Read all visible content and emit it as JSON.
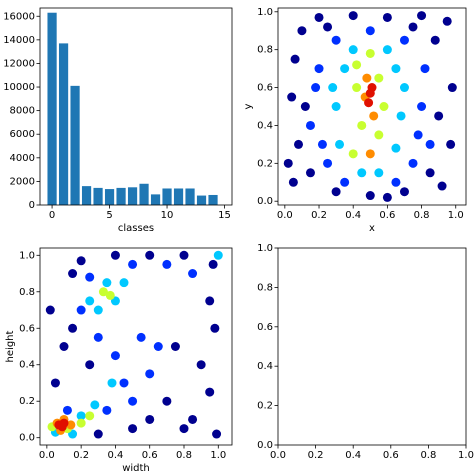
{
  "chart_data": [
    {
      "type": "bar",
      "xlabel": "classes",
      "x": [
        0,
        1,
        2,
        3,
        4,
        5,
        6,
        7,
        8,
        9,
        10,
        11,
        12,
        13,
        14
      ],
      "values": [
        16300,
        13700,
        10100,
        1600,
        1450,
        1350,
        1450,
        1500,
        1800,
        900,
        1400,
        1400,
        1400,
        800,
        850
      ],
      "color": "#1f77b4",
      "xlim": [
        -1.05,
        15.65
      ],
      "xticks": [
        0,
        5,
        10,
        15
      ],
      "ylim": [
        0,
        16700
      ],
      "yticks": [
        0,
        2000,
        4000,
        6000,
        8000,
        10000,
        12000,
        14000,
        16000
      ]
    },
    {
      "type": "scatter",
      "xlabel": "x",
      "ylabel": "y",
      "xlim": [
        -0.04,
        1.06
      ],
      "ylim": [
        -0.02,
        1.02
      ],
      "xticks": [
        {
          "value": 0,
          "label": "0.0"
        },
        0.2,
        0.4,
        0.6,
        0.8,
        {
          "value": 1,
          "label": "1.0"
        }
      ],
      "yticks": [
        {
          "value": 0,
          "label": "0.0"
        },
        0.2,
        0.4,
        0.6,
        0.8,
        {
          "value": 1,
          "label": "1.0"
        }
      ],
      "series": [
        {
          "color": "#00008f",
          "x": [
            0.05,
            0.1,
            0.2,
            0.4,
            0.6,
            0.8,
            0.95,
            0.98,
            0.97,
            0.92,
            0.7,
            0.5,
            0.3,
            0.08,
            0.04,
            0.06,
            0.15,
            0.85,
            0.88,
            0.12,
            0.9,
            0.25,
            0.75,
            0.02,
            0.6
          ],
          "values": [
            0.1,
            0.9,
            0.97,
            0.98,
            0.97,
            0.98,
            0.95,
            0.6,
            0.3,
            0.08,
            0.05,
            0.03,
            0.05,
            0.3,
            0.55,
            0.75,
            0.15,
            0.15,
            0.85,
            0.5,
            0.45,
            0.92,
            0.92,
            0.2,
            0.02
          ]
        },
        {
          "color": "#0030ff",
          "x": [
            0.15,
            0.2,
            0.25,
            0.3,
            0.7,
            0.75,
            0.8,
            0.82,
            0.18,
            0.78,
            0.35,
            0.65,
            0.5,
            0.22,
            0.85
          ],
          "values": [
            0.4,
            0.7,
            0.2,
            0.85,
            0.85,
            0.2,
            0.5,
            0.7,
            0.6,
            0.35,
            0.1,
            0.1,
            0.9,
            0.3,
            0.3
          ]
        },
        {
          "color": "#00c8ff",
          "x": [
            0.3,
            0.35,
            0.65,
            0.68,
            0.32,
            0.65,
            0.4,
            0.6,
            0.45,
            0.55,
            0.28,
            0.7
          ],
          "values": [
            0.5,
            0.7,
            0.7,
            0.45,
            0.3,
            0.28,
            0.8,
            0.8,
            0.15,
            0.15,
            0.6,
            0.6
          ]
        },
        {
          "color": "#c8ff30",
          "x": [
            0.42,
            0.55,
            0.45,
            0.55,
            0.4,
            0.58,
            0.42,
            0.5
          ],
          "values": [
            0.6,
            0.65,
            0.4,
            0.35,
            0.25,
            0.5,
            0.72,
            0.78
          ]
        },
        {
          "color": "#ff8c00",
          "x": [
            0.47,
            0.52,
            0.5,
            0.48
          ],
          "values": [
            0.55,
            0.45,
            0.25,
            0.65
          ]
        },
        {
          "color": "#e01000",
          "x": [
            0.5,
            0.49,
            0.51
          ],
          "values": [
            0.57,
            0.52,
            0.6
          ]
        }
      ]
    },
    {
      "type": "scatter",
      "xlabel": "width",
      "ylabel": "height",
      "xlim": [
        -0.04,
        1.08
      ],
      "ylim": [
        -0.04,
        1.04
      ],
      "xticks": [
        {
          "value": 0,
          "label": "0.0"
        },
        0.2,
        0.4,
        0.6,
        0.8,
        {
          "value": 1,
          "label": "1.0"
        }
      ],
      "yticks": [
        {
          "value": 0,
          "label": "0.0"
        },
        0.2,
        0.4,
        0.6,
        0.8,
        {
          "value": 1,
          "label": "1.0"
        }
      ],
      "series": [
        {
          "color": "#00008f",
          "x": [
            0.02,
            0.05,
            0.1,
            0.15,
            0.2,
            0.4,
            0.6,
            0.8,
            0.97,
            0.98,
            0.95,
            0.8,
            0.6,
            0.5,
            0.3,
            0.9,
            0.7,
            0.85,
            0.99,
            0.15,
            0.75,
            0.95,
            0.25
          ],
          "values": [
            0.7,
            0.3,
            0.5,
            0.9,
            0.97,
            1.0,
            1.0,
            1.0,
            0.95,
            0.6,
            0.25,
            0.05,
            0.1,
            0.05,
            0.02,
            0.4,
            0.2,
            0.1,
            0.02,
            0.6,
            0.5,
            0.75,
            0.4
          ]
        },
        {
          "color": "#0030ff",
          "x": [
            0.2,
            0.25,
            0.5,
            0.7,
            0.55,
            0.65,
            0.45,
            0.6,
            0.35,
            0.5,
            0.85,
            0.3,
            0.4,
            0.12
          ],
          "values": [
            0.7,
            0.88,
            0.95,
            0.95,
            0.55,
            0.5,
            0.3,
            0.35,
            0.15,
            0.2,
            0.9,
            0.55,
            0.45,
            0.15
          ]
        },
        {
          "color": "#00c8ff",
          "x": [
            0.3,
            0.35,
            0.4,
            0.25,
            0.45,
            0.2,
            0.28,
            0.38,
            0.05,
            0.15,
            1.0
          ],
          "values": [
            0.7,
            0.85,
            0.75,
            0.75,
            0.85,
            0.12,
            0.18,
            0.3,
            0.03,
            0.02,
            1.0
          ]
        },
        {
          "color": "#c8ff30",
          "x": [
            0.33,
            0.37,
            0.2,
            0.25,
            0.12,
            0.03
          ],
          "values": [
            0.8,
            0.78,
            0.08,
            0.12,
            0.05,
            0.06
          ]
        },
        {
          "color": "#ff8c00",
          "x": [
            0.06,
            0.1,
            0.14,
            0.08
          ],
          "values": [
            0.08,
            0.1,
            0.07,
            0.04
          ]
        },
        {
          "color": "#e01000",
          "x": [
            0.07,
            0.1,
            0.09
          ],
          "values": [
            0.07,
            0.08,
            0.06
          ]
        }
      ]
    },
    {
      "type": "empty",
      "xlim": [
        0,
        1
      ],
      "ylim": [
        0,
        1
      ],
      "xticks": [
        {
          "value": 0,
          "label": "0.0"
        },
        0.2,
        0.4,
        0.6,
        0.8,
        {
          "value": 1,
          "label": "1.0"
        }
      ],
      "yticks": [
        {
          "value": 0,
          "label": "0.0"
        },
        0.2,
        0.4,
        0.6,
        0.8,
        {
          "value": 1,
          "label": "1.0"
        }
      ]
    }
  ]
}
